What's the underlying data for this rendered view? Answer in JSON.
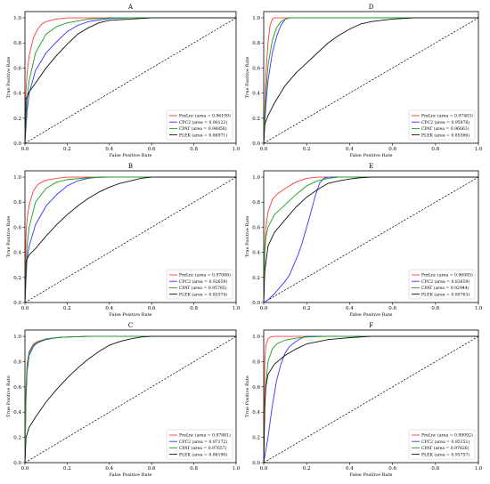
{
  "x_axis_label": "False Positive Rate",
  "y_axis_label": "True Positive Rate",
  "ticks": [
    "0.0",
    "0.2",
    "0.4",
    "0.6",
    "0.8",
    "1.0"
  ],
  "chart_data": [
    {
      "type": "line",
      "title": "A",
      "xlabel": "False Positive Rate",
      "ylabel": "True Positive Rate",
      "xlim": [
        0,
        1
      ],
      "ylim": [
        0,
        1.05
      ],
      "legend_position": "bottom-right",
      "series": [
        {
          "name": "PreLnc (area = 0.96199)",
          "color": "#ff3b3b",
          "x": [
            0,
            0.005,
            0.01,
            0.02,
            0.04,
            0.06,
            0.08,
            0.1,
            0.15,
            0.2,
            0.3,
            0.4,
            1.0
          ],
          "y": [
            0,
            0.42,
            0.55,
            0.7,
            0.84,
            0.91,
            0.95,
            0.97,
            0.99,
            1.0,
            1.0,
            1.0,
            1.0
          ]
        },
        {
          "name": "CPC2 (area = 0.90122)",
          "color": "#3434ff",
          "x": [
            0,
            0.01,
            0.02,
            0.05,
            0.1,
            0.15,
            0.2,
            0.25,
            0.3,
            0.4,
            0.5,
            1.0
          ],
          "y": [
            0,
            0.25,
            0.4,
            0.58,
            0.72,
            0.81,
            0.89,
            0.94,
            0.97,
            0.995,
            1.0,
            1.0
          ]
        },
        {
          "name": "CPAT (area = 0.94858)",
          "color": "#18a018",
          "x": [
            0,
            0.01,
            0.02,
            0.05,
            0.1,
            0.15,
            0.2,
            0.3,
            0.4,
            0.5,
            1.0
          ],
          "y": [
            0,
            0.35,
            0.5,
            0.72,
            0.87,
            0.93,
            0.96,
            0.99,
            1.0,
            1.0,
            1.0
          ]
        },
        {
          "name": "PLEK (area = 0.86971)",
          "color": "#111111",
          "x": [
            0,
            0.005,
            0.02,
            0.05,
            0.1,
            0.15,
            0.2,
            0.25,
            0.3,
            0.35,
            0.4,
            0.5,
            0.6,
            0.7,
            1.0
          ],
          "y": [
            0,
            0.35,
            0.41,
            0.48,
            0.6,
            0.7,
            0.79,
            0.87,
            0.92,
            0.96,
            0.98,
            0.99,
            1.0,
            1.0,
            1.0
          ]
        }
      ]
    },
    {
      "type": "line",
      "title": "D",
      "xlabel": "False Positive Rate",
      "ylabel": "True Positive Rate",
      "xlim": [
        0,
        1
      ],
      "ylim": [
        0,
        1.05
      ],
      "legend_position": "bottom-right",
      "series": [
        {
          "name": "PreLnc (area = 0.97483)",
          "color": "#ff3b3b",
          "x": [
            0,
            0.01,
            0.02,
            0.03,
            0.04,
            0.05,
            0.07,
            1.0
          ],
          "y": [
            0,
            0.55,
            0.8,
            0.94,
            0.99,
            1.0,
            1.0,
            1.0
          ]
        },
        {
          "name": "CPC2 (area = 0.95976)",
          "color": "#3434ff",
          "x": [
            0,
            0.01,
            0.02,
            0.04,
            0.06,
            0.08,
            0.1,
            0.12,
            1.0
          ],
          "y": [
            0,
            0.3,
            0.5,
            0.72,
            0.85,
            0.94,
            0.99,
            1.0,
            1.0
          ]
        },
        {
          "name": "CPAT (area = 0.96663)",
          "color": "#18a018",
          "x": [
            0,
            0.01,
            0.02,
            0.04,
            0.06,
            0.08,
            0.1,
            0.12,
            1.0
          ],
          "y": [
            0,
            0.4,
            0.62,
            0.82,
            0.92,
            0.97,
            0.99,
            1.0,
            1.0
          ]
        },
        {
          "name": "PLEK (area = 0.85566)",
          "color": "#111111",
          "x": [
            0,
            0.005,
            0.02,
            0.05,
            0.1,
            0.15,
            0.2,
            0.25,
            0.3,
            0.35,
            0.4,
            0.45,
            0.5,
            0.6,
            0.7,
            1.0
          ],
          "y": [
            0,
            0.15,
            0.22,
            0.32,
            0.46,
            0.56,
            0.64,
            0.72,
            0.8,
            0.86,
            0.91,
            0.95,
            0.97,
            0.99,
            1.0,
            1.0
          ]
        }
      ]
    },
    {
      "type": "line",
      "title": "B",
      "xlabel": "False Positive Rate",
      "ylabel": "True Positive Rate",
      "xlim": [
        0,
        1
      ],
      "ylim": [
        0,
        1.05
      ],
      "legend_position": "bottom-right",
      "series": [
        {
          "name": "PreLnc (area = 0.97088)",
          "color": "#ff3b3b",
          "x": [
            0,
            0.005,
            0.01,
            0.02,
            0.04,
            0.06,
            0.08,
            0.1,
            0.15,
            0.2,
            0.3,
            1.0
          ],
          "y": [
            0,
            0.55,
            0.66,
            0.78,
            0.89,
            0.94,
            0.96,
            0.975,
            0.99,
            1.0,
            1.0,
            1.0
          ]
        },
        {
          "name": "CPC2 (area = 0.92659)",
          "color": "#3434ff",
          "x": [
            0,
            0.01,
            0.02,
            0.05,
            0.1,
            0.15,
            0.2,
            0.25,
            0.3,
            0.35,
            1.0
          ],
          "y": [
            0,
            0.35,
            0.45,
            0.62,
            0.77,
            0.86,
            0.93,
            0.97,
            0.99,
            1.0,
            1.0
          ]
        },
        {
          "name": "CPAT (area = 0.95785)",
          "color": "#18a018",
          "x": [
            0,
            0.01,
            0.02,
            0.05,
            0.1,
            0.15,
            0.2,
            0.3,
            0.4,
            1.0
          ],
          "y": [
            0,
            0.45,
            0.6,
            0.8,
            0.91,
            0.96,
            0.98,
            0.995,
            1.0,
            1.0
          ]
        },
        {
          "name": "PLEK (area = 0.85574)",
          "color": "#111111",
          "x": [
            0,
            0.005,
            0.02,
            0.05,
            0.1,
            0.15,
            0.2,
            0.25,
            0.3,
            0.35,
            0.4,
            0.45,
            0.5,
            0.55,
            0.6,
            1.0
          ],
          "y": [
            0,
            0.33,
            0.38,
            0.43,
            0.53,
            0.62,
            0.7,
            0.77,
            0.83,
            0.88,
            0.92,
            0.95,
            0.97,
            0.99,
            1.0,
            1.0
          ]
        }
      ]
    },
    {
      "type": "line",
      "title": "E",
      "xlabel": "False Positive Rate",
      "ylabel": "True Positive Rate",
      "xlim": [
        0,
        1
      ],
      "ylim": [
        0,
        1.05
      ],
      "legend_position": "bottom-right",
      "series": [
        {
          "name": "PreLnc (area = 0.96085)",
          "color": "#ff3b3b",
          "x": [
            0,
            0.005,
            0.01,
            0.02,
            0.04,
            0.06,
            0.1,
            0.15,
            0.2,
            0.25,
            1.0
          ],
          "y": [
            0,
            0.45,
            0.6,
            0.72,
            0.82,
            0.86,
            0.91,
            0.96,
            0.99,
            1.0,
            1.0
          ]
        },
        {
          "name": "CPC2 (area = 0.83659)",
          "color": "#3434ff",
          "x": [
            0,
            0.02,
            0.05,
            0.08,
            0.1,
            0.12,
            0.14,
            0.16,
            0.18,
            0.2,
            0.22,
            0.24,
            0.26,
            0.28,
            0.3,
            1.0
          ],
          "y": [
            0,
            0.02,
            0.07,
            0.13,
            0.17,
            0.22,
            0.3,
            0.38,
            0.48,
            0.6,
            0.72,
            0.85,
            0.95,
            0.99,
            1.0,
            1.0
          ]
        },
        {
          "name": "CPAT (area = 0.92944)",
          "color": "#18a018",
          "x": [
            0,
            0.005,
            0.01,
            0.02,
            0.05,
            0.1,
            0.15,
            0.2,
            0.25,
            0.3,
            0.35,
            1.0
          ],
          "y": [
            0,
            0.4,
            0.52,
            0.6,
            0.7,
            0.78,
            0.86,
            0.93,
            0.97,
            0.99,
            1.0,
            1.0
          ]
        },
        {
          "name": "PLEK (area = 0.89763)",
          "color": "#111111",
          "x": [
            0,
            0.005,
            0.02,
            0.05,
            0.1,
            0.15,
            0.2,
            0.25,
            0.3,
            0.35,
            0.4,
            0.45,
            0.5,
            1.0
          ],
          "y": [
            0,
            0.25,
            0.45,
            0.56,
            0.66,
            0.76,
            0.84,
            0.9,
            0.95,
            0.97,
            0.985,
            0.995,
            1.0,
            1.0
          ]
        }
      ]
    },
    {
      "type": "line",
      "title": "C",
      "xlabel": "False Positive Rate",
      "ylabel": "True Positive Rate",
      "xlim": [
        0,
        1
      ],
      "ylim": [
        0,
        1.05
      ],
      "legend_position": "bottom-right",
      "series": [
        {
          "name": "PreLnc (area = 0.97881)",
          "color": "#ff3b3b",
          "x": [
            0,
            0.005,
            0.01,
            0.02,
            0.04,
            0.06,
            0.1,
            0.15,
            0.2,
            0.3,
            1.0
          ],
          "y": [
            0,
            0.6,
            0.78,
            0.88,
            0.94,
            0.96,
            0.98,
            0.99,
            0.995,
            1.0,
            1.0
          ]
        },
        {
          "name": "CPC2 (area = 0.97172)",
          "color": "#3434ff",
          "x": [
            0,
            0.005,
            0.01,
            0.02,
            0.04,
            0.06,
            0.1,
            0.15,
            0.2,
            0.3,
            1.0
          ],
          "y": [
            0,
            0.5,
            0.72,
            0.85,
            0.92,
            0.95,
            0.975,
            0.99,
            0.995,
            1.0,
            1.0
          ]
        },
        {
          "name": "CPAT (area = 0.97657)",
          "color": "#18a018",
          "x": [
            0,
            0.005,
            0.01,
            0.02,
            0.04,
            0.06,
            0.1,
            0.15,
            0.2,
            0.3,
            1.0
          ],
          "y": [
            0,
            0.55,
            0.76,
            0.87,
            0.93,
            0.955,
            0.98,
            0.99,
            0.995,
            1.0,
            1.0
          ]
        },
        {
          "name": "PLEK (area = 0.86190)",
          "color": "#111111",
          "x": [
            0,
            0.005,
            0.02,
            0.05,
            0.1,
            0.15,
            0.2,
            0.25,
            0.3,
            0.35,
            0.4,
            0.45,
            0.5,
            0.55,
            0.6,
            1.0
          ],
          "y": [
            0,
            0.2,
            0.28,
            0.36,
            0.48,
            0.58,
            0.67,
            0.75,
            0.82,
            0.88,
            0.93,
            0.96,
            0.98,
            0.995,
            1.0,
            1.0
          ]
        }
      ]
    },
    {
      "type": "line",
      "title": "F",
      "xlabel": "False Positive Rate",
      "ylabel": "True Positive Rate",
      "xlim": [
        0,
        1
      ],
      "ylim": [
        0,
        1.05
      ],
      "legend_position": "bottom-right",
      "series": [
        {
          "name": "PreLnc (area = 0.99092)",
          "color": "#ff3b3b",
          "x": [
            0,
            0.005,
            0.01,
            0.02,
            0.03,
            0.05,
            1.0
          ],
          "y": [
            0,
            0.8,
            0.93,
            0.98,
            0.995,
            1.0,
            1.0
          ]
        },
        {
          "name": "CPC2 (area = 0.95351)",
          "color": "#3434ff",
          "x": [
            0,
            0.02,
            0.04,
            0.06,
            0.08,
            0.1,
            0.12,
            0.15,
            0.18,
            0.2,
            1.0
          ],
          "y": [
            0,
            0.2,
            0.45,
            0.65,
            0.78,
            0.87,
            0.92,
            0.96,
            0.99,
            1.0,
            1.0
          ]
        },
        {
          "name": "CPAT (area = 0.97826)",
          "color": "#18a018",
          "x": [
            0,
            0.005,
            0.01,
            0.02,
            0.04,
            0.06,
            0.1,
            0.15,
            0.2,
            0.3,
            1.0
          ],
          "y": [
            0,
            0.45,
            0.62,
            0.8,
            0.9,
            0.94,
            0.97,
            0.985,
            0.995,
            1.0,
            1.0
          ]
        },
        {
          "name": "PLEK (area = 0.95757)",
          "color": "#111111",
          "x": [
            0,
            0.005,
            0.01,
            0.02,
            0.05,
            0.1,
            0.15,
            0.2,
            0.3,
            0.4,
            0.5,
            1.0
          ],
          "y": [
            0,
            0.45,
            0.6,
            0.7,
            0.78,
            0.85,
            0.9,
            0.94,
            0.975,
            0.99,
            1.0,
            1.0
          ]
        }
      ]
    }
  ]
}
